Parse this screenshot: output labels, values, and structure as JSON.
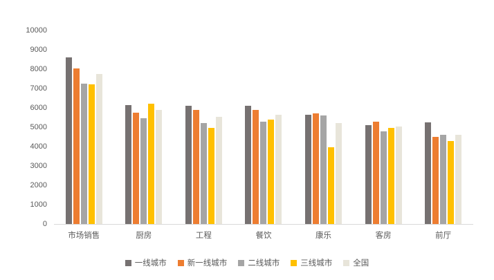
{
  "chart_data": {
    "type": "bar",
    "title": "",
    "xlabel": "",
    "ylabel": "",
    "categories": [
      "市场销售",
      "厨房",
      "工程",
      "餐饮",
      "康乐",
      "客房",
      "前厅"
    ],
    "series": [
      {
        "name": "一线城市",
        "color": "#767171",
        "values": [
          8600,
          6150,
          6100,
          6100,
          5650,
          5100,
          5250
        ]
      },
      {
        "name": "新一线城市",
        "color": "#ED7D31",
        "values": [
          8050,
          5750,
          5900,
          5900,
          5700,
          5300,
          4500
        ]
      },
      {
        "name": "二线城市",
        "color": "#A5A5A5",
        "values": [
          7250,
          5450,
          5200,
          5300,
          5600,
          4800,
          4600
        ]
      },
      {
        "name": "三线城市",
        "color": "#FFC000",
        "values": [
          7200,
          6200,
          4950,
          5400,
          3950,
          4950,
          4300
        ]
      },
      {
        "name": "全国",
        "color": "#E8E5DA",
        "values": [
          7750,
          5900,
          5550,
          5650,
          5200,
          5050,
          4600
        ]
      }
    ],
    "ylim": [
      0,
      10000
    ],
    "ytick_step": 1000,
    "grid": false,
    "legend_position": "bottom",
    "background_color": "#ffffff",
    "text_color": "#595959"
  }
}
